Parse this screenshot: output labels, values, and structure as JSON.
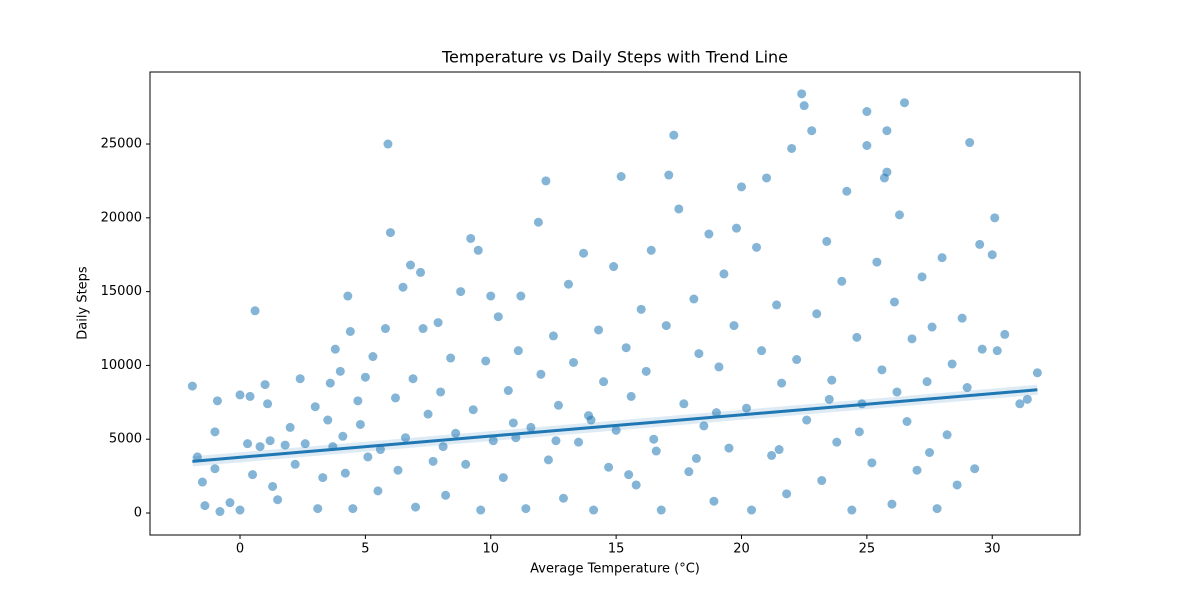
{
  "chart_data": {
    "type": "scatter",
    "title": "Temperature vs Daily Steps with Trend Line",
    "x_label": "Average Temperature (°C)",
    "y_label": "Daily Steps",
    "color": "#1f77b4",
    "xlim": [
      -3.59,
      33.5
    ],
    "ylim": [
      -1490,
      29880
    ],
    "xticks": [
      0,
      5,
      10,
      15,
      20,
      25,
      30
    ],
    "yticks": [
      0,
      5000,
      10000,
      15000,
      20000,
      25000
    ],
    "x": [
      -1.9,
      -1.7,
      -1.5,
      -1.4,
      -1.0,
      -1.0,
      -0.9,
      -0.8,
      -0.4,
      0.0,
      0.0,
      0.3,
      0.4,
      0.6,
      0.5,
      0.8,
      1.0,
      1.1,
      1.2,
      1.3,
      1.5,
      1.8,
      2.0,
      2.2,
      2.4,
      2.6,
      3.0,
      3.1,
      3.3,
      3.5,
      3.6,
      3.7,
      3.8,
      4.0,
      4.1,
      4.2,
      4.3,
      4.4,
      4.5,
      4.7,
      4.8,
      5.0,
      5.1,
      5.3,
      5.5,
      5.6,
      5.8,
      5.9,
      6.0,
      6.2,
      6.3,
      6.5,
      6.6,
      6.8,
      6.9,
      7.0,
      7.2,
      7.3,
      7.5,
      7.7,
      7.9,
      8.0,
      8.2,
      8.4,
      8.6,
      8.8,
      9.0,
      9.2,
      9.3,
      9.5,
      9.6,
      9.8,
      10.0,
      10.1,
      10.3,
      10.5,
      10.7,
      10.9,
      11.1,
      11.2,
      11.4,
      11.6,
      11.9,
      12.0,
      12.2,
      12.3,
      12.5,
      12.7,
      12.9,
      13.1,
      13.3,
      13.5,
      13.7,
      13.9,
      14.1,
      14.3,
      14.5,
      14.7,
      14.9,
      15.0,
      15.2,
      15.4,
      15.6,
      15.8,
      16.0,
      16.2,
      16.4,
      16.6,
      16.8,
      17.0,
      17.1,
      17.3,
      17.5,
      17.7,
      17.9,
      18.1,
      18.3,
      18.5,
      18.7,
      18.9,
      19.1,
      19.3,
      19.5,
      19.7,
      19.8,
      20.0,
      20.2,
      20.4,
      20.6,
      20.8,
      21.0,
      21.2,
      21.4,
      21.6,
      21.8,
      22.0,
      22.2,
      22.4,
      22.5,
      22.6,
      22.8,
      23.0,
      23.2,
      23.4,
      23.6,
      23.8,
      24.0,
      24.2,
      24.4,
      24.6,
      24.8,
      25.0,
      25.0,
      25.2,
      25.4,
      25.6,
      25.7,
      25.8,
      25.8,
      26.0,
      26.1,
      26.3,
      26.5,
      26.6,
      26.8,
      27.0,
      27.2,
      27.4,
      27.6,
      27.8,
      28.0,
      28.2,
      28.4,
      28.6,
      28.8,
      29.0,
      29.1,
      29.3,
      29.5,
      29.6,
      30.0,
      30.1,
      30.2,
      30.5,
      31.1,
      31.4,
      31.8,
      8.1,
      11.0,
      14.0,
      16.5,
      19.0,
      21.5,
      23.5,
      26.2,
      27.5,
      12.6,
      15.5,
      18.2,
      24.7
    ],
    "y": [
      8600,
      3800,
      2100,
      500,
      5500,
      3000,
      7600,
      100,
      700,
      8000,
      200,
      4700,
      7900,
      13700,
      2600,
      4500,
      8700,
      7400,
      4900,
      1800,
      900,
      4600,
      5800,
      3300,
      9100,
      4700,
      7200,
      300,
      2400,
      6300,
      8800,
      4500,
      11100,
      9600,
      5200,
      2700,
      14700,
      12300,
      300,
      7600,
      6000,
      9200,
      3800,
      10600,
      1500,
      4300,
      12500,
      25000,
      19000,
      7800,
      2900,
      15300,
      5100,
      16800,
      9100,
      400,
      16300,
      12500,
      6700,
      3500,
      12900,
      8200,
      1200,
      10500,
      5400,
      15000,
      3300,
      18600,
      7000,
      17800,
      200,
      10300,
      14700,
      4900,
      13300,
      2400,
      8300,
      6100,
      11000,
      14700,
      300,
      5800,
      19700,
      9400,
      22500,
      3600,
      12000,
      7300,
      1000,
      15500,
      10200,
      4800,
      17600,
      6600,
      200,
      12400,
      8900,
      3100,
      16700,
      5600,
      22800,
      11200,
      7900,
      1900,
      13800,
      9600,
      17800,
      4200,
      200,
      12700,
      22900,
      25600,
      20600,
      7400,
      2800,
      14500,
      10800,
      5900,
      18900,
      800,
      9900,
      16200,
      4400,
      12700,
      19300,
      22100,
      7100,
      200,
      18000,
      11000,
      22700,
      3900,
      14100,
      8800,
      1300,
      24700,
      10400,
      28400,
      27600,
      6300,
      25900,
      13500,
      2200,
      18400,
      9000,
      4800,
      15700,
      21800,
      200,
      11900,
      7400,
      27200,
      24900,
      3400,
      17000,
      9700,
      22700,
      25900,
      23100,
      600,
      14300,
      20200,
      27800,
      6200,
      11800,
      2900,
      16000,
      8900,
      12600,
      300,
      17300,
      5300,
      10100,
      1900,
      13200,
      8500,
      25100,
      3000,
      18200,
      11100,
      17500,
      20000,
      11000,
      12100,
      7400,
      7700,
      9500,
      4500,
      5100,
      6300,
      5000,
      6800,
      4300,
      7700,
      8200,
      4100,
      4900,
      2600,
      3700,
      5500
    ],
    "trend": {
      "x": [
        -1.9,
        31.8
      ],
      "y": [
        3500,
        8350
      ]
    }
  }
}
